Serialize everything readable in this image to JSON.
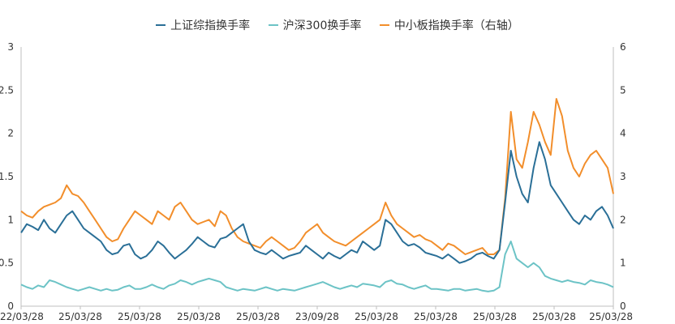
{
  "chart_data": {
    "type": "line",
    "legend_position": "top-center",
    "grid": false,
    "series": [
      {
        "name": "上证综指换手率",
        "axis": "left",
        "color": "#2a6f97",
        "values": [
          0.85,
          0.95,
          0.92,
          0.88,
          1.0,
          0.9,
          0.85,
          0.95,
          1.05,
          1.1,
          1.0,
          0.9,
          0.85,
          0.8,
          0.75,
          0.65,
          0.6,
          0.62,
          0.7,
          0.72,
          0.6,
          0.55,
          0.58,
          0.65,
          0.75,
          0.7,
          0.62,
          0.55,
          0.6,
          0.65,
          0.72,
          0.8,
          0.75,
          0.7,
          0.68,
          0.78,
          0.8,
          0.85,
          0.9,
          0.95,
          0.75,
          0.65,
          0.62,
          0.6,
          0.65,
          0.6,
          0.55,
          0.58,
          0.6,
          0.62,
          0.7,
          0.65,
          0.6,
          0.55,
          0.62,
          0.58,
          0.55,
          0.6,
          0.65,
          0.62,
          0.75,
          0.7,
          0.65,
          0.7,
          1.0,
          0.95,
          0.85,
          0.75,
          0.7,
          0.72,
          0.68,
          0.62,
          0.6,
          0.58,
          0.55,
          0.6,
          0.55,
          0.5,
          0.52,
          0.55,
          0.6,
          0.62,
          0.58,
          0.55,
          0.65,
          1.2,
          1.8,
          1.5,
          1.3,
          1.2,
          1.6,
          1.9,
          1.7,
          1.4,
          1.3,
          1.2,
          1.1,
          1.0,
          0.95,
          1.05,
          1.0,
          1.1,
          1.15,
          1.05,
          0.9
        ]
      },
      {
        "name": "沪深300换手率",
        "axis": "left",
        "color": "#6cc3c6",
        "values": [
          0.25,
          0.22,
          0.2,
          0.24,
          0.22,
          0.3,
          0.28,
          0.25,
          0.22,
          0.2,
          0.18,
          0.2,
          0.22,
          0.2,
          0.18,
          0.2,
          0.18,
          0.19,
          0.22,
          0.24,
          0.2,
          0.2,
          0.22,
          0.25,
          0.22,
          0.2,
          0.24,
          0.26,
          0.3,
          0.28,
          0.25,
          0.28,
          0.3,
          0.32,
          0.3,
          0.28,
          0.22,
          0.2,
          0.18,
          0.2,
          0.19,
          0.18,
          0.2,
          0.22,
          0.2,
          0.18,
          0.2,
          0.19,
          0.18,
          0.2,
          0.22,
          0.24,
          0.26,
          0.28,
          0.25,
          0.22,
          0.2,
          0.22,
          0.24,
          0.22,
          0.26,
          0.25,
          0.24,
          0.22,
          0.28,
          0.3,
          0.26,
          0.25,
          0.22,
          0.2,
          0.22,
          0.24,
          0.2,
          0.2,
          0.19,
          0.18,
          0.2,
          0.2,
          0.18,
          0.19,
          0.2,
          0.18,
          0.17,
          0.18,
          0.22,
          0.6,
          0.75,
          0.55,
          0.5,
          0.45,
          0.5,
          0.45,
          0.35,
          0.32,
          0.3,
          0.28,
          0.3,
          0.28,
          0.27,
          0.25,
          0.3,
          0.28,
          0.27,
          0.25,
          0.22
        ]
      },
      {
        "name": "中小板指换手率（右轴）",
        "axis": "right",
        "color": "#f28e2b",
        "values": [
          2.2,
          2.1,
          2.05,
          2.2,
          2.3,
          2.35,
          2.4,
          2.5,
          2.8,
          2.6,
          2.55,
          2.4,
          2.2,
          2.0,
          1.8,
          1.6,
          1.5,
          1.55,
          1.8,
          2.0,
          2.2,
          2.1,
          2.0,
          1.9,
          2.2,
          2.1,
          2.0,
          2.3,
          2.4,
          2.2,
          2.0,
          1.9,
          1.95,
          2.0,
          1.85,
          2.2,
          2.1,
          1.8,
          1.6,
          1.5,
          1.45,
          1.4,
          1.35,
          1.5,
          1.6,
          1.5,
          1.4,
          1.3,
          1.35,
          1.5,
          1.7,
          1.8,
          1.9,
          1.7,
          1.6,
          1.5,
          1.45,
          1.4,
          1.5,
          1.6,
          1.7,
          1.8,
          1.9,
          2.0,
          2.4,
          2.1,
          1.9,
          1.8,
          1.7,
          1.6,
          1.65,
          1.55,
          1.5,
          1.4,
          1.3,
          1.45,
          1.4,
          1.3,
          1.2,
          1.25,
          1.3,
          1.35,
          1.2,
          1.2,
          1.3,
          2.5,
          4.5,
          3.4,
          3.2,
          3.8,
          4.5,
          4.2,
          3.8,
          3.5,
          4.8,
          4.4,
          3.6,
          3.2,
          3.0,
          3.3,
          3.5,
          3.6,
          3.4,
          3.2,
          2.6
        ]
      }
    ],
    "yleft": {
      "lim": [
        0,
        3
      ],
      "ticks": [
        "0",
        "0.5",
        "1",
        "1.5",
        "2",
        "2.5",
        "3"
      ]
    },
    "yright": {
      "lim": [
        0,
        6
      ],
      "ticks": [
        "0",
        "1",
        "2",
        "3",
        "4",
        "5",
        "6"
      ]
    },
    "xticks": [
      "22/03/28",
      "25/03/28",
      "25/03/28",
      "25/03/28",
      "25/03/28",
      "23/09/28",
      "25/03/28",
      "25/03/28",
      "25/03/28",
      "25/03/28",
      "25/03/28"
    ]
  }
}
